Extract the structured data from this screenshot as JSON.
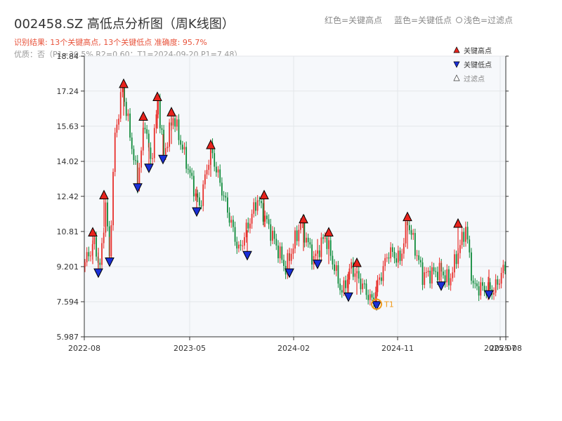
{
  "title": "002458.SZ 高低点分析图（周K线图）",
  "legend_top": {
    "high": "红色=关键高点",
    "low": "蓝色=关键低点",
    "filtered": "浅色=过滤点"
  },
  "subtitle": "识别结果: 13个关键高点, 13个关键低点   准确度: 95.7%",
  "subtitle2": "优质：否（P1=30.5%  R2=0.60：T1=2024-09-20 P1=7.48）",
  "colors": {
    "up": "#e8302c",
    "down": "#0f8a3a",
    "high_marker": "#e8231d",
    "low_marker": "#1a2fd6",
    "t1": "#f09a1a",
    "title": "#e8523a",
    "plot_bg": "#f6f8fb"
  },
  "chart_data": {
    "type": "candlestick",
    "y_ticks": [
      "5.987",
      "7.594",
      "9.201",
      "10.81",
      "12.42",
      "14.02",
      "15.63",
      "17.24",
      "18.84"
    ],
    "ylim": [
      5.987,
      18.84
    ],
    "x_tick_labels": [
      "2022-08",
      "2023-05",
      "2024-02",
      "2024-11",
      "2025-07",
      "2025-08"
    ],
    "legend": [
      {
        "name": "关键高点",
        "icon": "triangle-up-red"
      },
      {
        "name": "关键低点",
        "icon": "triangle-down-blue"
      },
      {
        "name": "过滤点",
        "icon": "triangle-up-outline"
      }
    ],
    "t1_label": "T1",
    "key_highs": [
      10.6,
      12.3,
      17.4,
      15.9,
      16.8,
      16.1,
      14.6,
      12.3,
      11.2,
      10.6,
      9.2,
      11.3,
      11.0
    ],
    "key_lows": [
      9.1,
      9.6,
      13.0,
      13.9,
      14.3,
      11.9,
      9.9,
      9.1,
      9.5,
      8.0,
      7.6,
      8.5,
      8.1
    ],
    "t1": {
      "date": "2024-09-20",
      "price": 7.48
    }
  }
}
